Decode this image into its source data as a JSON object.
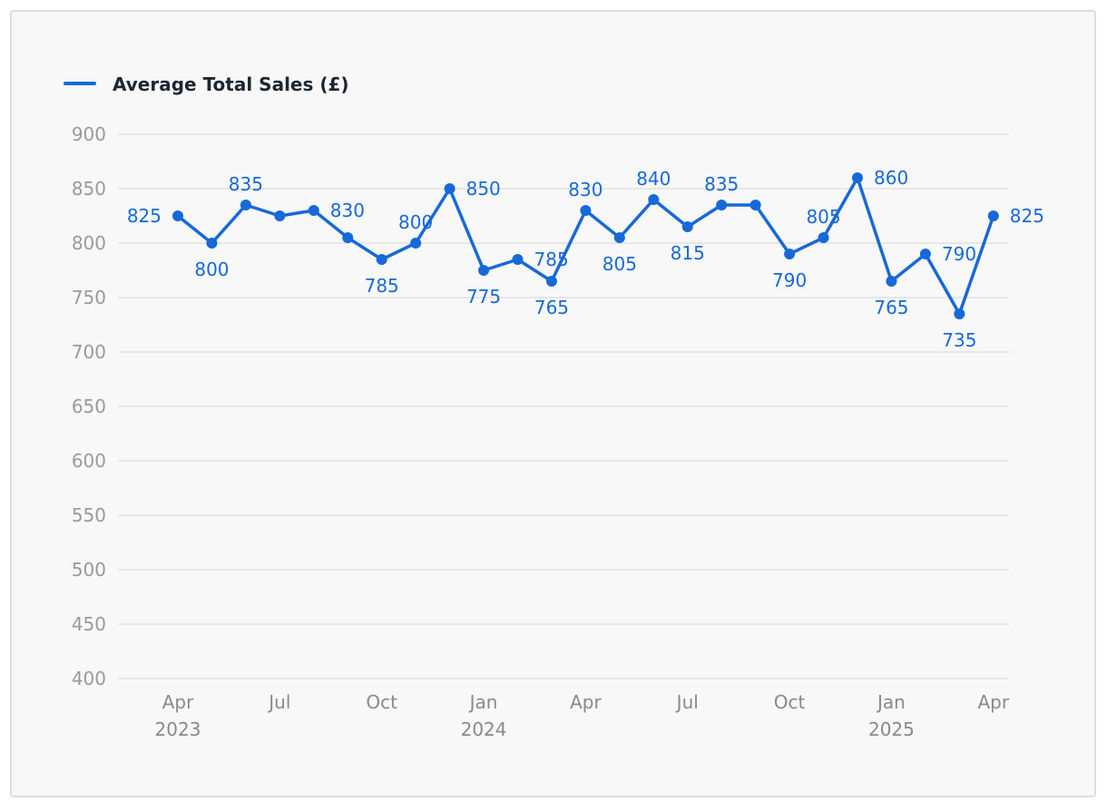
{
  "chart_data": {
    "type": "line",
    "legend": {
      "position": "top-left"
    },
    "grid": true,
    "color": "#1769d8",
    "ylim": [
      400,
      900
    ],
    "yticks": [
      400,
      450,
      500,
      550,
      600,
      650,
      700,
      750,
      800,
      850,
      900
    ],
    "xticks": [
      {
        "label": "Apr",
        "year": "2023",
        "x": "2023-04"
      },
      {
        "label": "Jul",
        "year": "",
        "x": "2023-07"
      },
      {
        "label": "Oct",
        "year": "",
        "x": "2023-10"
      },
      {
        "label": "Jan",
        "year": "2024",
        "x": "2024-01"
      },
      {
        "label": "Apr",
        "year": "",
        "x": "2024-04"
      },
      {
        "label": "Jul",
        "year": "",
        "x": "2024-07"
      },
      {
        "label": "Oct",
        "year": "",
        "x": "2024-10"
      },
      {
        "label": "Jan",
        "year": "2025",
        "x": "2025-01"
      },
      {
        "label": "Apr",
        "year": "",
        "x": "2025-04"
      }
    ],
    "series": [
      {
        "name": "Average Total Sales (£)",
        "x": [
          "2023-04",
          "2023-05",
          "2023-06",
          "2023-07",
          "2023-08",
          "2023-09",
          "2023-10",
          "2023-11",
          "2023-12",
          "2024-01",
          "2024-02",
          "2024-03",
          "2024-04",
          "2024-05",
          "2024-06",
          "2024-07",
          "2024-08",
          "2024-09",
          "2024-10",
          "2024-11",
          "2024-12",
          "2025-01",
          "2025-02",
          "2025-03",
          "2025-04"
        ],
        "values": [
          825,
          800,
          835,
          825,
          830,
          805,
          785,
          800,
          850,
          775,
          785,
          765,
          830,
          805,
          840,
          815,
          835,
          835,
          790,
          805,
          860,
          765,
          790,
          735,
          825
        ],
        "data_labels": [
          "825",
          "800",
          "835",
          "",
          "830",
          "",
          "785",
          "800",
          "850",
          "775",
          "785",
          "765",
          "830",
          "805",
          "840",
          "815",
          "835",
          "",
          "790",
          "805",
          "860",
          "765",
          "790",
          "735",
          "825"
        ]
      }
    ]
  }
}
